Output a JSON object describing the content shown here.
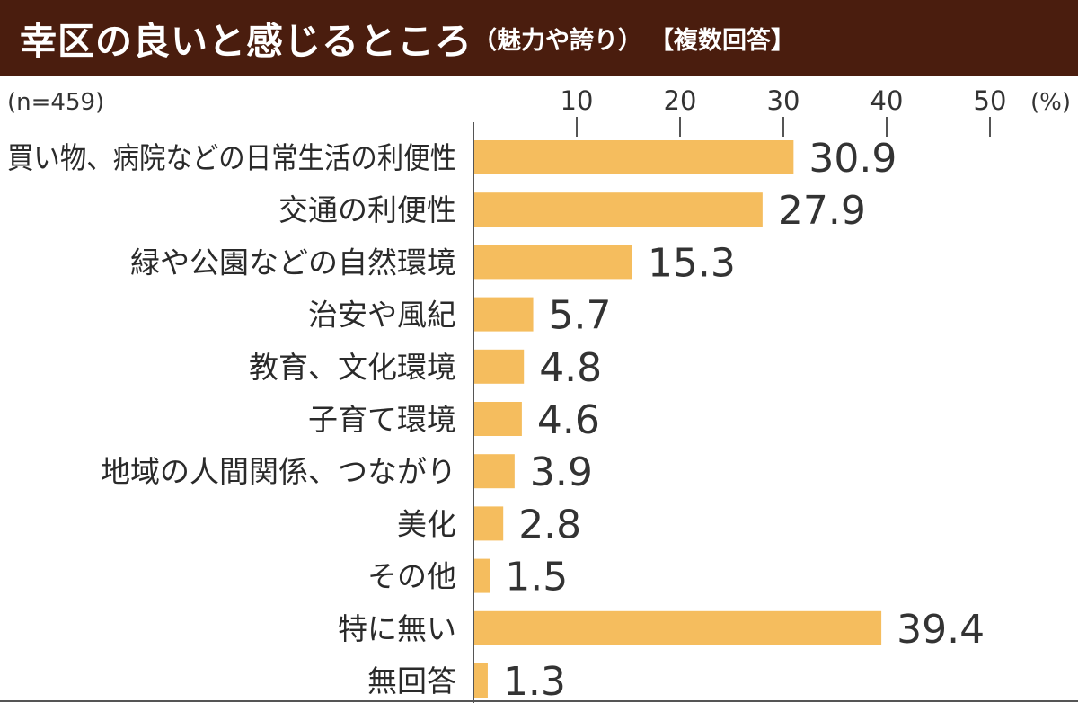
{
  "header": {
    "title": "幸区の良いと感じるところ",
    "subtitle": "（魅力や誇り）",
    "multi": "【複数回答】"
  },
  "colors": {
    "header_bg": "#4a1d0e",
    "bar": "#f5bd5e"
  },
  "chart_data": {
    "type": "bar",
    "orientation": "horizontal",
    "sample_size": "(n=459)",
    "unit": "(%)",
    "xlim": [
      0,
      50
    ],
    "ticks": [
      10,
      20,
      30,
      40,
      50
    ],
    "categories": [
      "買い物、病院などの日常生活の利便性",
      "交通の利便性",
      "緑や公園などの自然環境",
      "治安や風紀",
      "教育、文化環境",
      "子育て環境",
      "地域の人間関係、つながり",
      "美化",
      "その他",
      "特に無い",
      "無回答"
    ],
    "values": [
      30.9,
      27.9,
      15.3,
      5.7,
      4.8,
      4.6,
      3.9,
      2.8,
      1.5,
      39.4,
      1.3
    ],
    "value_labels": [
      "30.9",
      "27.9",
      "15.3",
      "5.7",
      "4.8",
      "4.6",
      "3.9",
      "2.8",
      "1.5",
      "39.4",
      "1.3"
    ]
  }
}
